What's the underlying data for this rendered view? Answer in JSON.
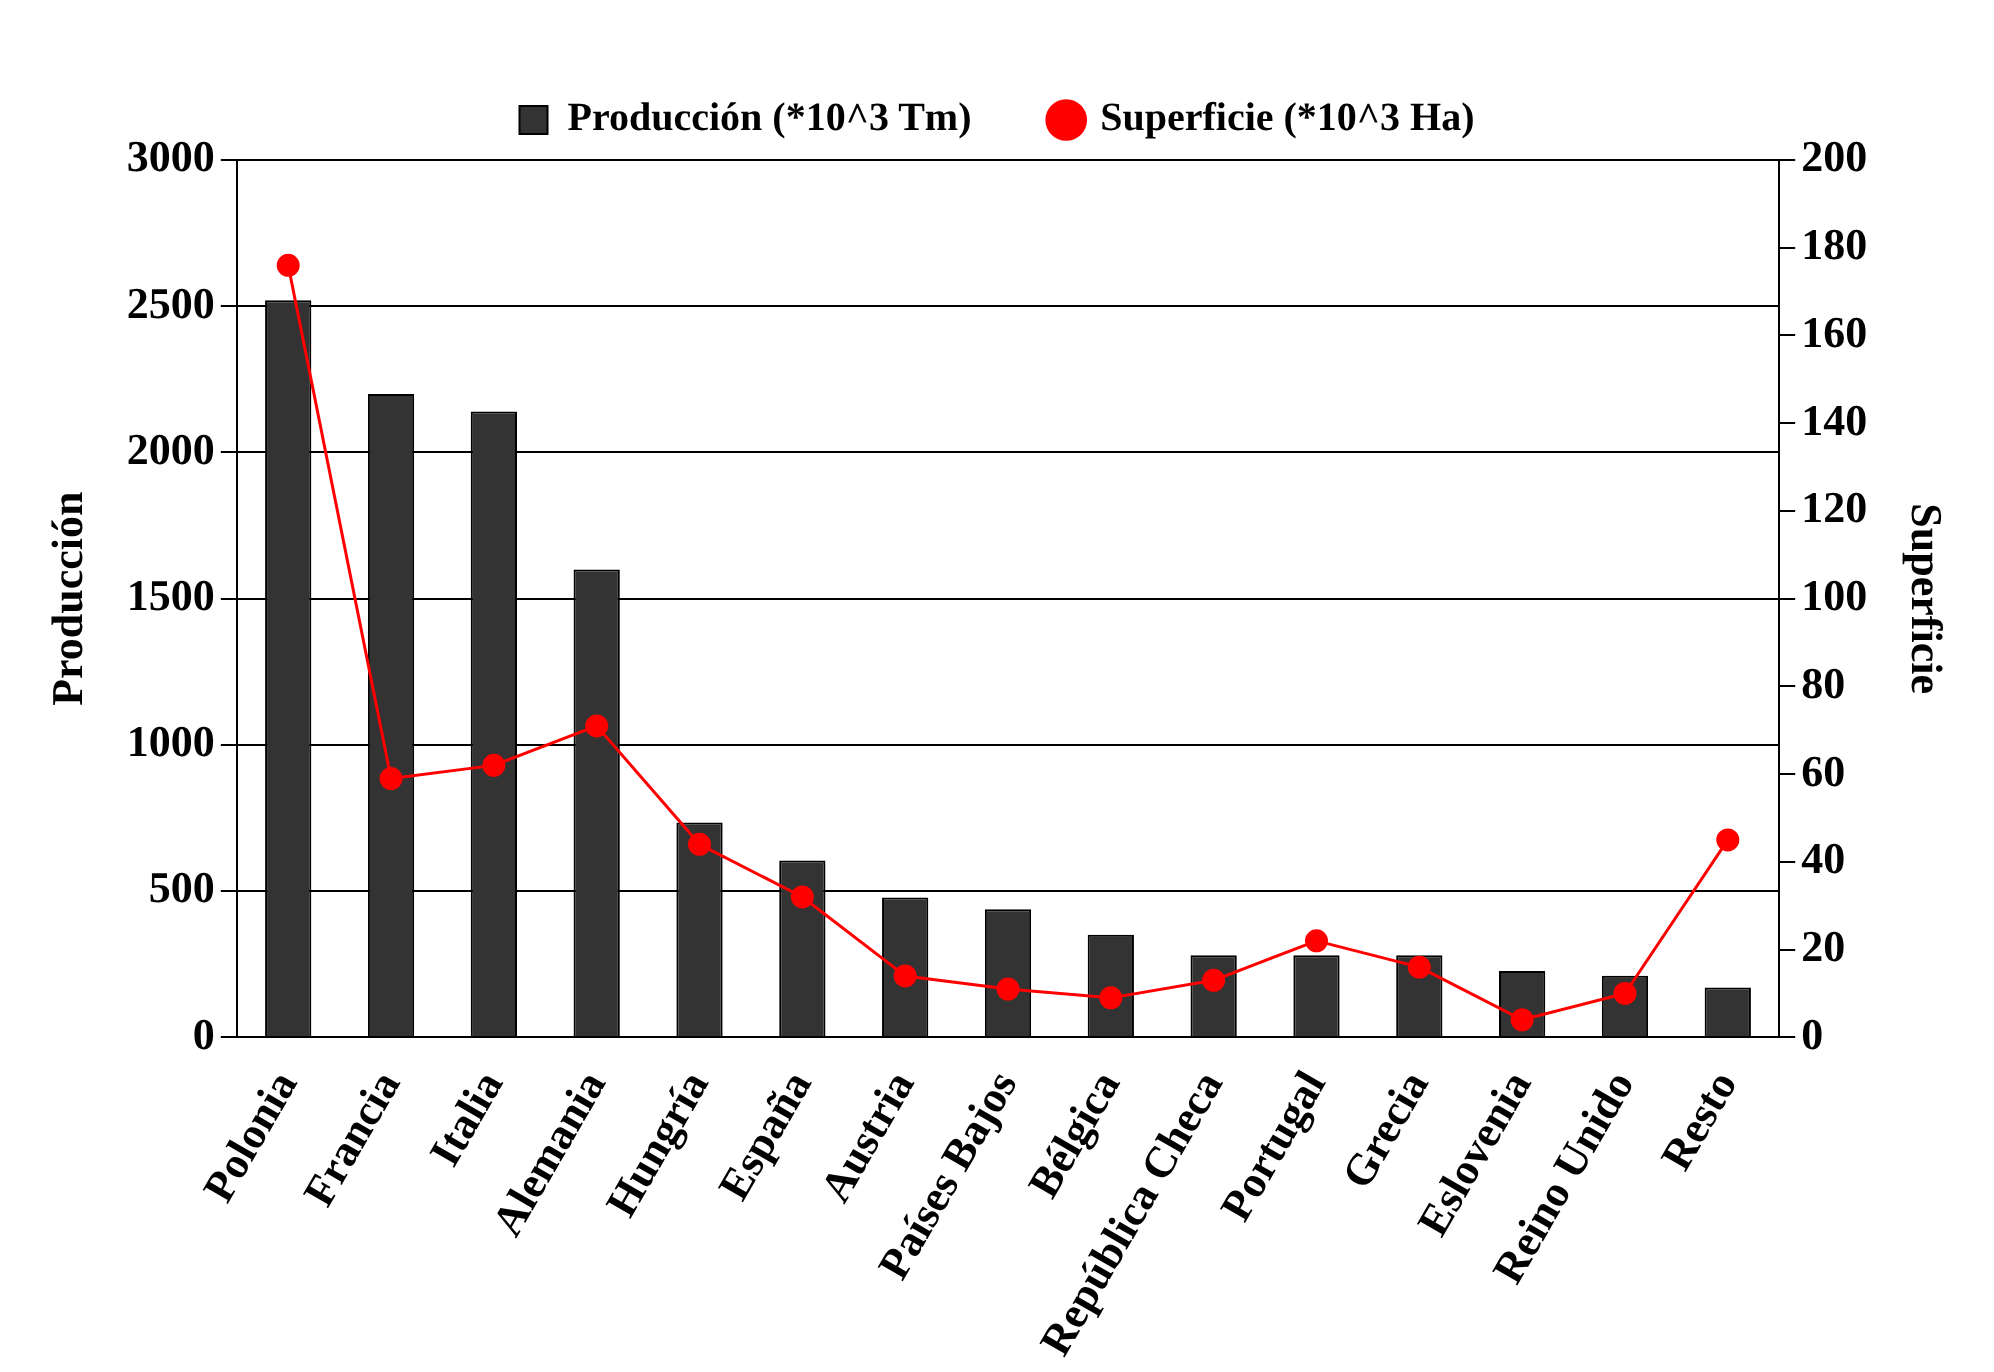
{
  "chart_data": {
    "type": "bar",
    "categories": [
      "Polonia",
      "Francia",
      "Italia",
      "Alemania",
      "Hungría",
      "España",
      "Austria",
      "Países Bajos",
      "Bélgica",
      "República Checa",
      "Portugal",
      "Grecia",
      "Eslovenia",
      "Reino Unido",
      "Resto"
    ],
    "series": [
      {
        "name": "Producción (*10^3 Tm)",
        "color": "#333333",
        "values": [
          2520,
          2200,
          2140,
          1600,
          735,
          605,
          478,
          438,
          351,
          281,
          281,
          281,
          227,
          211,
          170
        ]
      },
      {
        "name": "Superficie (*10^3 Ha)",
        "type": "line",
        "axis": "y2",
        "color": "#ff0000",
        "values": [
          176,
          59,
          62,
          71,
          44,
          32,
          14,
          11,
          9,
          13,
          22,
          16,
          4,
          10,
          45
        ]
      }
    ],
    "ylabel": "Producción",
    "y2label": "Superficie",
    "ylim": [
      0,
      3000
    ],
    "yticks": [
      0,
      500,
      1000,
      1500,
      2000,
      2500,
      3000
    ],
    "y2lim": [
      0,
      200
    ],
    "y2ticks": [
      0,
      20,
      40,
      60,
      80,
      100,
      120,
      140,
      160,
      180,
      200
    ],
    "grid": "y",
    "legend": "top",
    "marker": "circle"
  }
}
